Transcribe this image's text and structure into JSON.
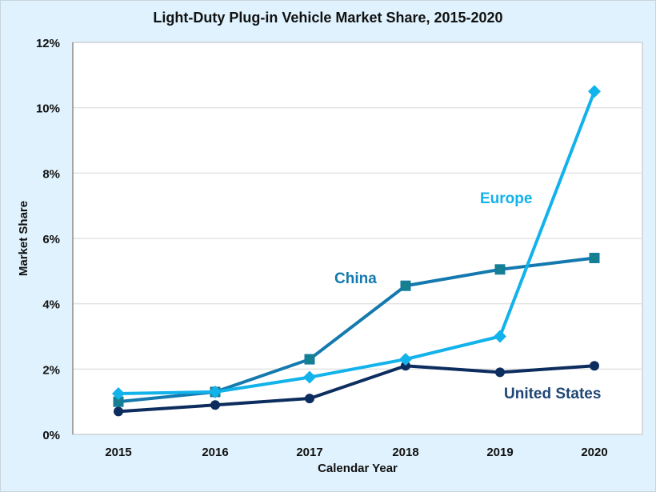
{
  "chart_data": {
    "type": "line",
    "title": "Light-Duty Plug-in Vehicle Market Share, 2015-2020",
    "xlabel": "Calendar Year",
    "ylabel": "Market Share",
    "x": [
      "2015",
      "2016",
      "2017",
      "2018",
      "2019",
      "2020"
    ],
    "ylim": [
      0,
      12
    ],
    "yticks": [
      0,
      2,
      4,
      6,
      8,
      10,
      12
    ],
    "ytick_labels": [
      "0%",
      "2%",
      "4%",
      "6%",
      "8%",
      "10%",
      "12%"
    ],
    "grid": true,
    "legend": "inline-labels",
    "series": [
      {
        "name": "China",
        "label": "China",
        "color": "#1479ae",
        "marker": "square",
        "values": [
          1.0,
          1.3,
          2.3,
          4.55,
          5.05,
          5.4
        ]
      },
      {
        "name": "Europe",
        "label": "Europe",
        "color": "#12b2eb",
        "marker": "diamond",
        "values": [
          1.25,
          1.3,
          1.75,
          2.3,
          3.0,
          10.5
        ]
      },
      {
        "name": "United States",
        "label": "United States",
        "color": "#0c2d5e",
        "marker": "circle",
        "values": [
          0.7,
          0.9,
          1.1,
          2.1,
          1.9,
          2.1
        ]
      }
    ],
    "label_colors": {
      "China": "#1479ae",
      "Europe": "#12b2eb",
      "United States": "#1f4675"
    }
  }
}
